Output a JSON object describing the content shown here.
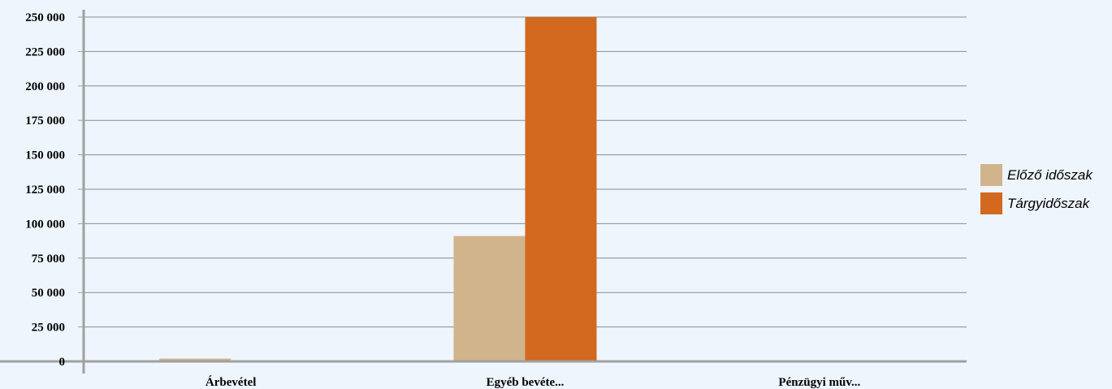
{
  "chart_data": {
    "type": "bar",
    "title": "",
    "xlabel": "",
    "ylabel": "",
    "categories": [
      "Árbevétel",
      "Egyéb bevéte...",
      "Pénzügyi műv..."
    ],
    "series": [
      {
        "name": "Előző időszak",
        "values": [
          2000,
          91000,
          0
        ],
        "color": "#d1b38c"
      },
      {
        "name": "Tárgyidőszak",
        "values": [
          0,
          250000,
          0
        ],
        "color": "#d2691e"
      }
    ],
    "ylim": [
      0,
      250000
    ],
    "yticks": [
      0,
      25000,
      50000,
      75000,
      100000,
      125000,
      150000,
      175000,
      200000,
      225000,
      250000
    ],
    "ytick_labels": [
      "0",
      "25 000",
      "50 000",
      "75 000",
      "100 000",
      "125 000",
      "150 000",
      "175 000",
      "200 000",
      "225 000",
      "250 000"
    ],
    "grid": true,
    "legend_position": "right"
  }
}
